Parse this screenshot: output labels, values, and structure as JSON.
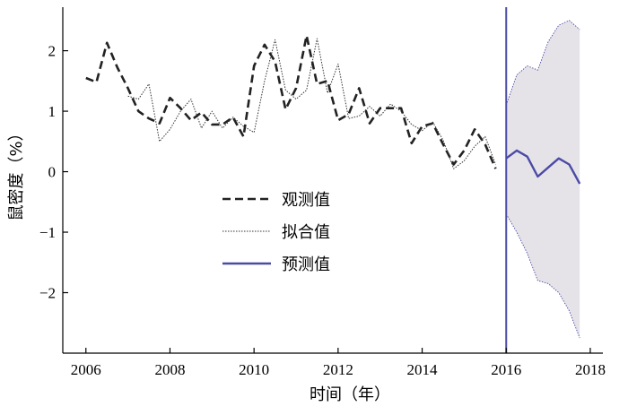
{
  "chart_data": {
    "type": "line",
    "title": "",
    "xlabel": "时间（年）",
    "ylabel": "鼠密度（%）",
    "xlim": [
      2005.45,
      2018.3
    ],
    "ylim": [
      -3.0,
      2.72
    ],
    "x_ticks": [
      2006,
      2008,
      2010,
      2012,
      2014,
      2016,
      2018
    ],
    "y_ticks": [
      -2,
      -1,
      0,
      1,
      2
    ],
    "x_tick_labels": [
      "2006",
      "2008",
      "2010",
      "2012",
      "2014",
      "2016",
      "2018"
    ],
    "y_tick_labels": [
      "−2",
      "−1",
      "0",
      "1",
      "2"
    ],
    "grid": false,
    "legend_position": "center-left",
    "forecast_start_line": 2016,
    "series": [
      {
        "name": "观测值",
        "style": "dashed",
        "color": "#222222",
        "points": [
          [
            2006.0,
            1.55
          ],
          [
            2006.25,
            1.48
          ],
          [
            2006.5,
            2.13
          ],
          [
            2006.75,
            1.72
          ],
          [
            2007.0,
            1.38
          ],
          [
            2007.25,
            1.0
          ],
          [
            2007.5,
            0.88
          ],
          [
            2007.75,
            0.8
          ],
          [
            2008.0,
            1.22
          ],
          [
            2008.25,
            1.05
          ],
          [
            2008.5,
            0.85
          ],
          [
            2008.75,
            0.98
          ],
          [
            2009.0,
            0.78
          ],
          [
            2009.25,
            0.78
          ],
          [
            2009.5,
            0.9
          ],
          [
            2009.75,
            0.58
          ],
          [
            2010.0,
            1.75
          ],
          [
            2010.25,
            2.1
          ],
          [
            2010.5,
            1.82
          ],
          [
            2010.75,
            1.03
          ],
          [
            2011.0,
            1.38
          ],
          [
            2011.25,
            2.25
          ],
          [
            2011.5,
            1.45
          ],
          [
            2011.75,
            1.5
          ],
          [
            2012.0,
            0.85
          ],
          [
            2012.25,
            0.95
          ],
          [
            2012.5,
            1.38
          ],
          [
            2012.75,
            0.8
          ],
          [
            2013.0,
            1.05
          ],
          [
            2013.25,
            1.05
          ],
          [
            2013.5,
            1.05
          ],
          [
            2013.75,
            0.47
          ],
          [
            2014.0,
            0.75
          ],
          [
            2014.25,
            0.8
          ],
          [
            2014.5,
            0.45
          ],
          [
            2014.75,
            0.12
          ],
          [
            2015.0,
            0.35
          ],
          [
            2015.25,
            0.7
          ],
          [
            2015.5,
            0.45
          ],
          [
            2015.75,
            0.05
          ]
        ]
      },
      {
        "name": "拟合值",
        "style": "dotted",
        "color": "#333333",
        "points": [
          [
            2007.0,
            1.25
          ],
          [
            2007.25,
            1.2
          ],
          [
            2007.5,
            1.45
          ],
          [
            2007.75,
            0.5
          ],
          [
            2008.0,
            0.7
          ],
          [
            2008.25,
            1.0
          ],
          [
            2008.5,
            1.2
          ],
          [
            2008.75,
            0.72
          ],
          [
            2009.0,
            1.0
          ],
          [
            2009.25,
            0.72
          ],
          [
            2009.5,
            0.9
          ],
          [
            2009.75,
            0.75
          ],
          [
            2010.0,
            0.65
          ],
          [
            2010.25,
            1.5
          ],
          [
            2010.5,
            2.18
          ],
          [
            2010.75,
            1.35
          ],
          [
            2011.0,
            1.2
          ],
          [
            2011.25,
            1.35
          ],
          [
            2011.5,
            2.2
          ],
          [
            2011.75,
            1.3
          ],
          [
            2012.0,
            1.78
          ],
          [
            2012.25,
            0.88
          ],
          [
            2012.5,
            0.92
          ],
          [
            2012.75,
            1.08
          ],
          [
            2013.0,
            0.92
          ],
          [
            2013.25,
            1.12
          ],
          [
            2013.5,
            1.0
          ],
          [
            2013.75,
            0.78
          ],
          [
            2014.0,
            0.68
          ],
          [
            2014.25,
            0.82
          ],
          [
            2014.5,
            0.52
          ],
          [
            2014.75,
            0.05
          ],
          [
            2015.0,
            0.18
          ],
          [
            2015.25,
            0.42
          ],
          [
            2015.5,
            0.58
          ],
          [
            2015.75,
            0.12
          ]
        ]
      },
      {
        "name": "预测值",
        "style": "solid",
        "color": "#4b4aa6",
        "points": [
          [
            2016.0,
            0.22
          ],
          [
            2016.25,
            0.35
          ],
          [
            2016.5,
            0.25
          ],
          [
            2016.75,
            -0.08
          ],
          [
            2017.0,
            0.07
          ],
          [
            2017.25,
            0.22
          ],
          [
            2017.5,
            0.12
          ],
          [
            2017.75,
            -0.2
          ]
        ]
      }
    ],
    "confidence_band": {
      "x": [
        2016.0,
        2016.25,
        2016.5,
        2016.75,
        2017.0,
        2017.25,
        2017.5,
        2017.75
      ],
      "upper": [
        1.1,
        1.6,
        1.75,
        1.68,
        2.15,
        2.42,
        2.5,
        2.35
      ],
      "lower": [
        -0.7,
        -1.0,
        -1.35,
        -1.8,
        -1.85,
        -2.0,
        -2.3,
        -2.75
      ],
      "fill": "#e6e3e8",
      "edge_color": "#4b4aa6"
    },
    "vline_color": "#4b4aa6"
  }
}
